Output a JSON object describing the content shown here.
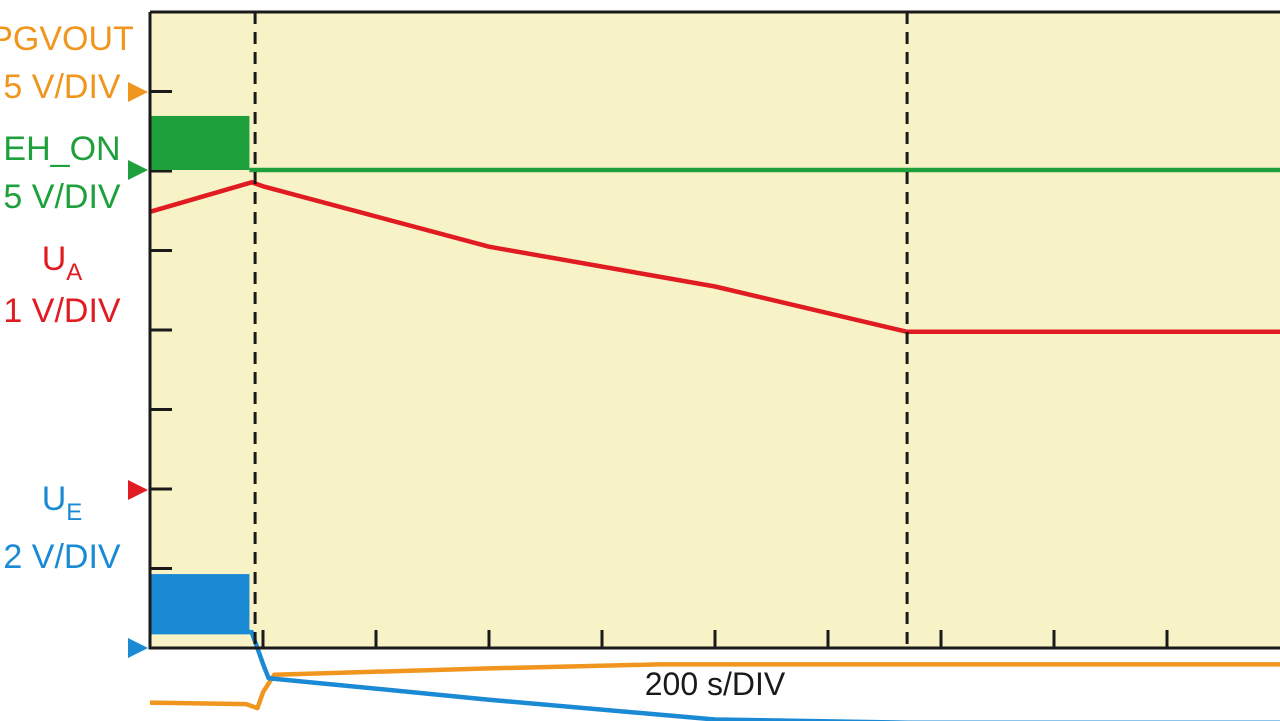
{
  "chart_data": {
    "type": "line",
    "title": "",
    "x_label": "200 s/DIV",
    "x_range_div": [
      0,
      10
    ],
    "grid": false,
    "channels": [
      {
        "name": "PGVOUT",
        "scale": "5 V/DIV",
        "color": "#f0961e",
        "points": [
          [
            0,
            -7.68
          ],
          [
            0.85,
            -7.7
          ],
          [
            0.95,
            -7.75
          ],
          [
            1.0,
            -7.55
          ],
          [
            1.1,
            -7.33
          ],
          [
            3.0,
            -7.25
          ],
          [
            4.5,
            -7.2
          ],
          [
            6.7,
            -7.2
          ],
          [
            10,
            -7.2
          ]
        ]
      },
      {
        "name": "EH_ON",
        "scale": "5 V/DIV",
        "color": "#1ea03c",
        "burst": {
          "x_end": 0.88,
          "low": 0,
          "high": 0.68
        },
        "points": [
          [
            0.88,
            0
          ],
          [
            10,
            0
          ]
        ]
      },
      {
        "name": "UA",
        "subscript": "A",
        "scale": "1 V/DIV",
        "color": "#e11b22",
        "points": [
          [
            0,
            3.5
          ],
          [
            0.9,
            3.87
          ],
          [
            1.0,
            3.82
          ],
          [
            3.0,
            3.06
          ],
          [
            5.0,
            2.56
          ],
          [
            6.7,
            1.99
          ],
          [
            10,
            1.99
          ]
        ]
      },
      {
        "name": "UE",
        "subscript": "E",
        "scale": "2 V/DIV",
        "color": "#1a8ad4",
        "burst": {
          "x_end": 0.88,
          "low": 0.2,
          "high": 0.93
        },
        "points": [
          [
            0,
            0.2
          ],
          [
            0.9,
            0.2
          ],
          [
            1.0,
            -0.2
          ],
          [
            1.05,
            -0.38
          ],
          [
            3.0,
            -0.65
          ],
          [
            5.0,
            -0.9
          ],
          [
            6.7,
            -0.94
          ],
          [
            10,
            -0.94
          ]
        ]
      }
    ],
    "markers": [
      {
        "x": 0.93,
        "style": "dashed"
      },
      {
        "x": 6.7,
        "style": "dashed"
      }
    ]
  },
  "labels": {
    "ch1_name": "PGVOUT",
    "ch1_scale": "5 V/DIV",
    "ch2_name": "EH_ON",
    "ch2_scale": "5 V/DIV",
    "ch3_name": "U",
    "ch3_sub": "A",
    "ch3_scale": "1 V/DIV",
    "ch4_name": "U",
    "ch4_sub": "E",
    "ch4_scale": "2 V/DIV",
    "x_axis": "200 s/DIV"
  },
  "colors": {
    "background": "#f8f3c6",
    "border": "#1a1a1a"
  }
}
